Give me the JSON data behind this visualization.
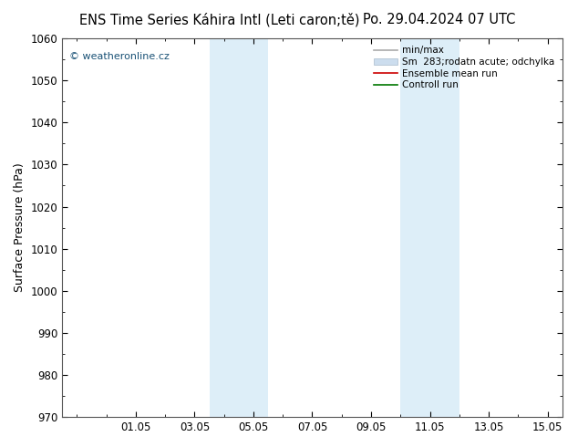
{
  "title_left": "ENS Time Series Káhira Intl (Leti caron;tě)",
  "title_right": "Po. 29.04.2024 07 UTC",
  "ylabel": "Surface Pressure (hPa)",
  "ylim": [
    970,
    1060
  ],
  "yticks": [
    970,
    980,
    990,
    1000,
    1010,
    1020,
    1030,
    1040,
    1050,
    1060
  ],
  "xlim_start": -0.5,
  "xlim_end": 16.5,
  "xtick_positions": [
    2,
    4,
    6,
    8,
    10,
    12,
    14,
    16
  ],
  "xtick_labels": [
    "01.05",
    "03.05",
    "05.05",
    "07.05",
    "09.05",
    "11.05",
    "13.05",
    "15.05"
  ],
  "shaded_bands": [
    {
      "xmin": 4.5,
      "xmax": 5.5
    },
    {
      "xmin": 5.5,
      "xmax": 6.5
    },
    {
      "xmin": 11.0,
      "xmax": 12.0
    },
    {
      "xmin": 12.0,
      "xmax": 13.0
    }
  ],
  "shade_color": "#ddeef8",
  "watermark": "© weatheronline.cz",
  "watermark_color": "#1a5276",
  "legend_entries": [
    {
      "label": "min/max",
      "color": "#aaaaaa",
      "lw": 1.2
    },
    {
      "label": "Sm  283;rodatn acute; odchylka",
      "color": "#ccddee",
      "patch": true
    },
    {
      "label": "Ensemble mean run",
      "color": "#cc0000",
      "lw": 1.2
    },
    {
      "label": "Controll run",
      "color": "#007700",
      "lw": 1.2
    }
  ],
  "background_color": "#ffffff",
  "plot_bg_color": "#ffffff",
  "title_fontsize": 10.5,
  "tick_fontsize": 8.5,
  "ylabel_fontsize": 9
}
